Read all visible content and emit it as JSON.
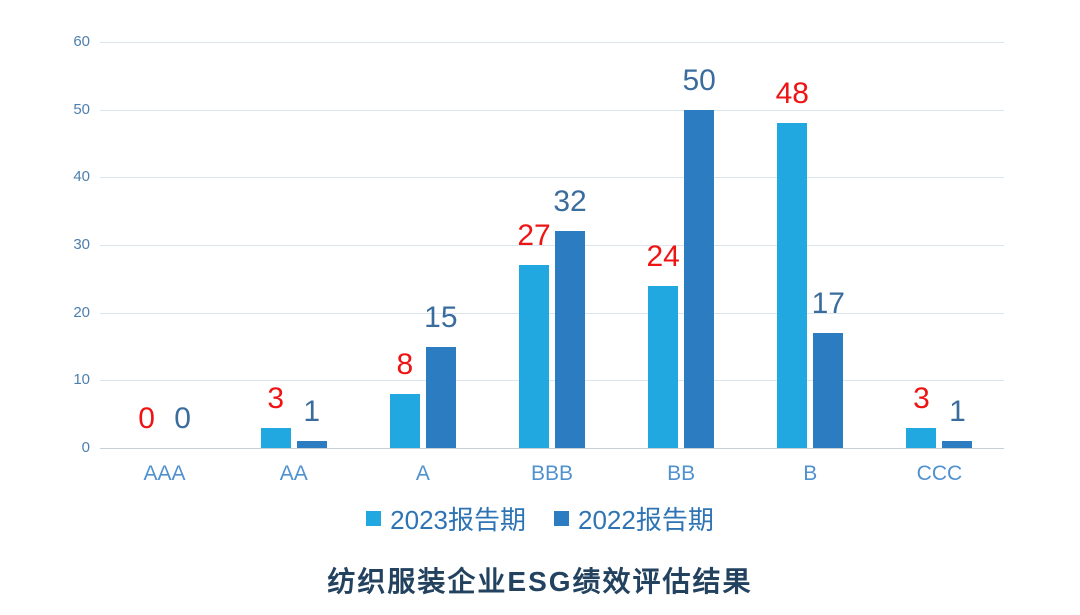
{
  "chart_data": {
    "type": "bar",
    "title": "纺织服装企业ESG绩效评估结果",
    "categories": [
      "AAA",
      "AA",
      "A",
      "BBB",
      "BB",
      "B",
      "CCC"
    ],
    "series": [
      {
        "name": "2023报告期",
        "values": [
          0,
          3,
          8,
          27,
          24,
          48,
          3
        ],
        "bar_color": "#22a8e0",
        "label_color": "#ee1414"
      },
      {
        "name": "2022报告期",
        "values": [
          0,
          1,
          15,
          32,
          50,
          17,
          1
        ],
        "bar_color": "#2b7cc0",
        "label_color": "#3a6d9e"
      }
    ],
    "ylim": [
      0,
      60
    ],
    "yticks": [
      0,
      10,
      20,
      30,
      40,
      50,
      60
    ],
    "grid": true,
    "legend_position": "bottom",
    "colors": {
      "gridline": "#dbe5ee",
      "axis_line": "#c6d0d9",
      "ytick_label": "#4d7fae",
      "xtick_label": "#5091cf",
      "legend_text": "#2e74b5",
      "title_text": "#23425f",
      "background": "#ffffff"
    }
  }
}
